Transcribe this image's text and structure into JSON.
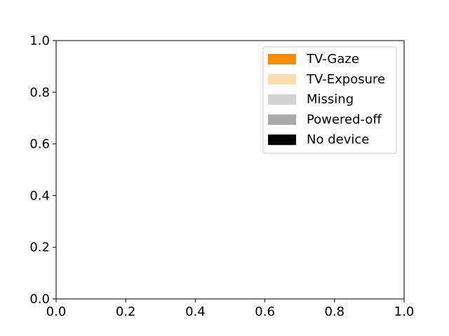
{
  "chart_data": {
    "type": "bar",
    "title": "",
    "xlabel": "",
    "ylabel": "",
    "xlim": [
      0.0,
      1.0
    ],
    "ylim": [
      0.0,
      1.0
    ],
    "x_ticks": [
      "0.0",
      "0.2",
      "0.4",
      "0.6",
      "0.8",
      "1.0"
    ],
    "y_ticks": [
      "0.0",
      "0.2",
      "0.4",
      "0.6",
      "0.8",
      "1.0"
    ],
    "grid": false,
    "legend_position": "top-right",
    "series": [
      {
        "name": "TV-Gaze",
        "color": "#FF8C00",
        "values": []
      },
      {
        "name": "TV-Exposure",
        "color": "#FFDEAD",
        "values": []
      },
      {
        "name": "Missing",
        "color": "#D3D3D3",
        "values": []
      },
      {
        "name": "Powered-off",
        "color": "#A9A9A9",
        "values": []
      },
      {
        "name": "No device",
        "color": "#000000",
        "values": []
      }
    ]
  }
}
